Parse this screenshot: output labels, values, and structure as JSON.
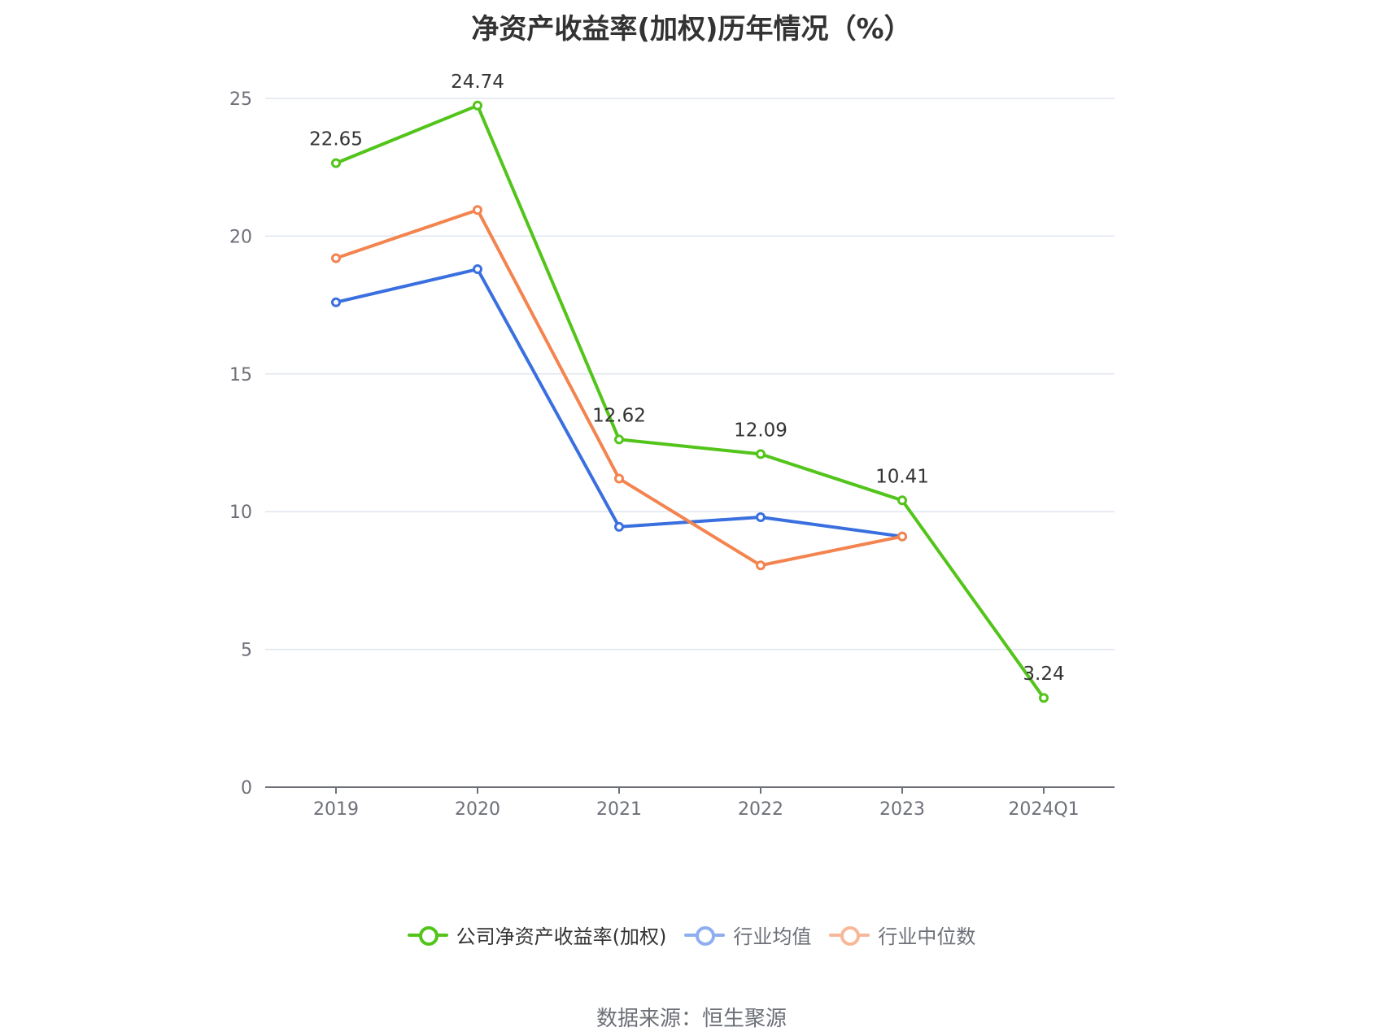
{
  "chart_data": {
    "type": "line",
    "title": "净资产收益率(加权)历年情况（%）",
    "categories": [
      "2019",
      "2020",
      "2021",
      "2022",
      "2023",
      "2024Q1"
    ],
    "ylim": [
      0,
      25
    ],
    "yticks": [
      0,
      5,
      10,
      15,
      20,
      25
    ],
    "grid": true,
    "legend_position": "bottom",
    "series": [
      {
        "name": "公司净资产收益率(加权)",
        "color": "#52c41a",
        "legend_color": "#52c41a",
        "values": [
          22.65,
          24.74,
          12.62,
          12.09,
          10.41,
          3.24
        ],
        "show_labels": true,
        "labels": [
          "22.65",
          "24.74",
          "12.62",
          "12.09",
          "10.41",
          "3.24"
        ]
      },
      {
        "name": "行业均值",
        "color": "#3a6fdf",
        "legend_color": "#8eaef0",
        "values": [
          17.6,
          18.8,
          9.45,
          9.8,
          9.1,
          null
        ],
        "show_labels": false
      },
      {
        "name": "行业中位数",
        "color": "#f3844f",
        "legend_color": "#f7b89a",
        "values": [
          19.2,
          20.95,
          11.2,
          8.05,
          9.1,
          null
        ],
        "show_labels": false
      }
    ]
  },
  "footer": {
    "source": "数据来源：恒生聚源"
  }
}
